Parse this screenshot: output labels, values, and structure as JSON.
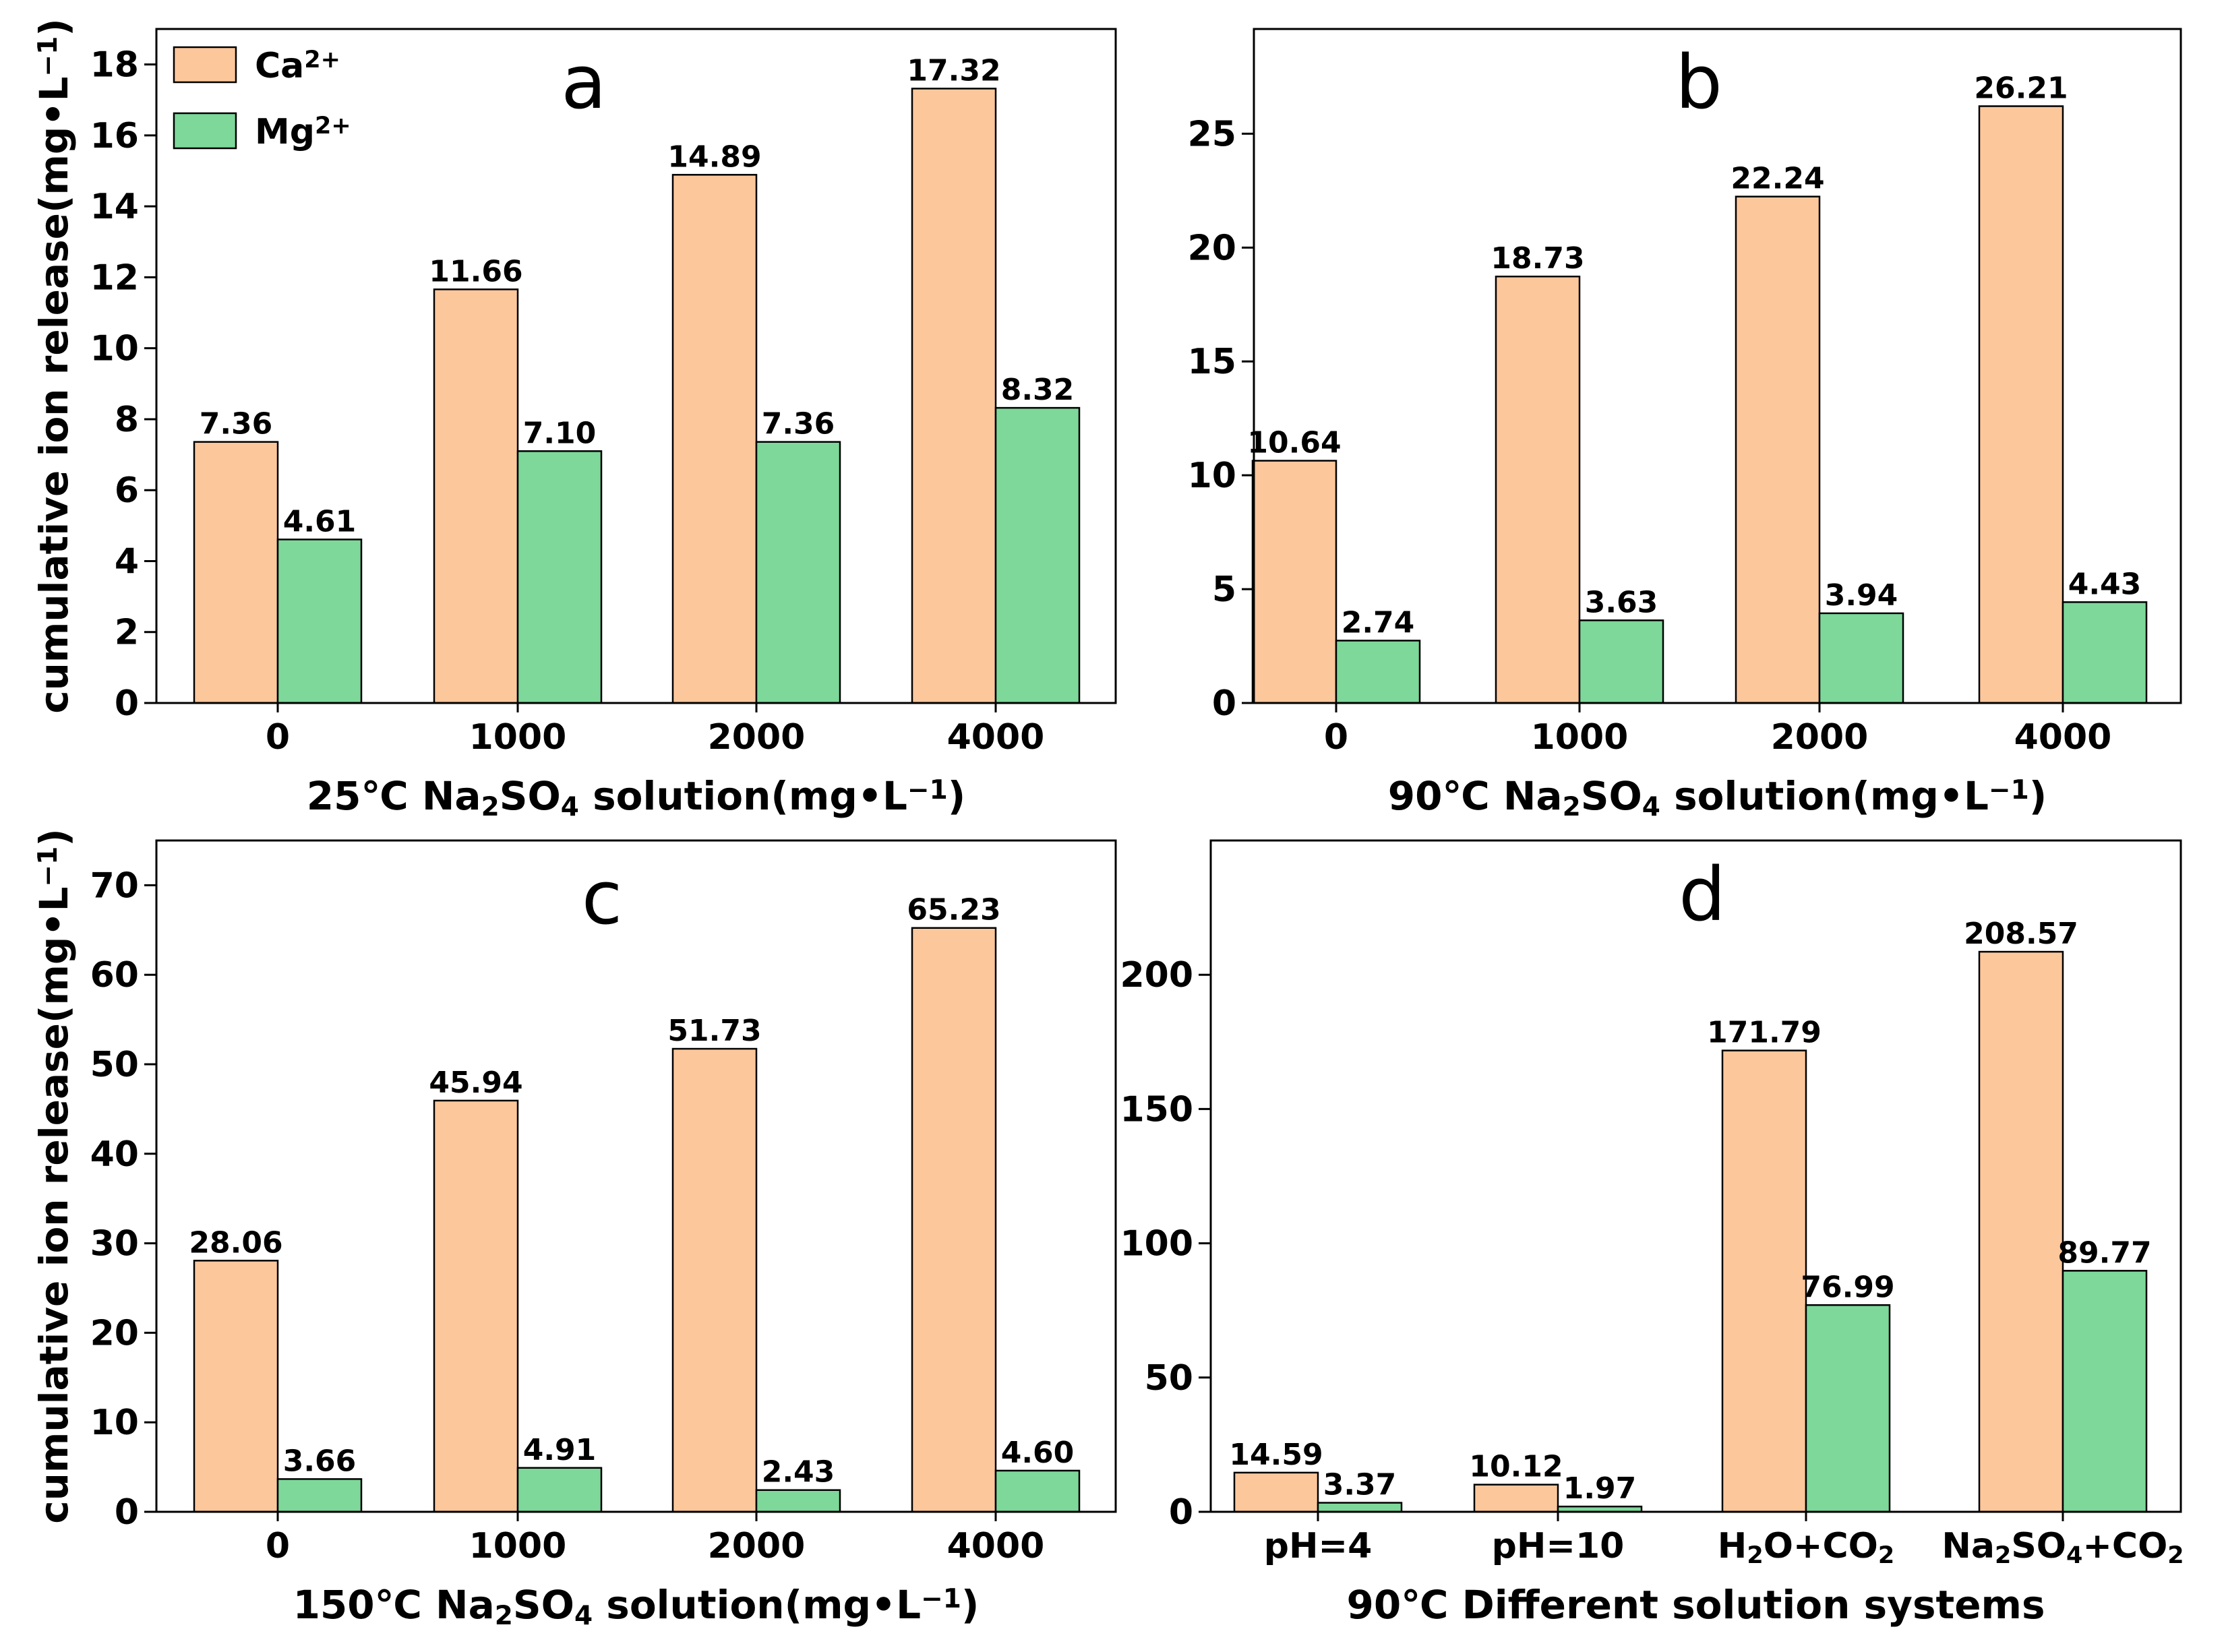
{
  "colors": {
    "ca": "#FDC79C",
    "mg": "#7DD89A",
    "axis": "#000000"
  },
  "legend": [
    {
      "key": "ca",
      "text": "Ca",
      "sup": "2+"
    },
    {
      "key": "mg",
      "text": "Mg",
      "sup": "2+"
    }
  ],
  "ylabel_text": "cumulative ion release(mg•L",
  "ylabel_sup": "−1",
  "ylabel_close": ")",
  "chart_data": [
    {
      "type": "bar",
      "panel": "a",
      "categories": [
        "0",
        "1000",
        "2000",
        "4000"
      ],
      "series": [
        {
          "name": "Ca2+",
          "values": [
            7.36,
            11.66,
            14.89,
            17.32
          ]
        },
        {
          "name": "Mg2+",
          "values": [
            4.61,
            7.1,
            7.36,
            8.32
          ]
        }
      ],
      "value_labels": [
        [
          "7.36",
          "11.66",
          "14.89",
          "17.32"
        ],
        [
          "4.61",
          "7.10",
          "7.36",
          "8.32"
        ]
      ],
      "ylim": [
        0,
        19
      ],
      "yticks": [
        0,
        2,
        4,
        6,
        8,
        10,
        12,
        14,
        16,
        18
      ],
      "xlabel": [
        "25℃ Na",
        "2",
        "SO",
        "4",
        " solution(mg•L",
        "−1",
        ")"
      ],
      "ylabel": "cumulative ion release(mg•L−1)"
    },
    {
      "type": "bar",
      "panel": "b",
      "categories": [
        "0",
        "1000",
        "2000",
        "4000"
      ],
      "series": [
        {
          "name": "Ca2+",
          "values": [
            10.64,
            18.73,
            22.24,
            26.21
          ]
        },
        {
          "name": "Mg2+",
          "values": [
            2.74,
            3.63,
            3.94,
            4.43
          ]
        }
      ],
      "value_labels": [
        [
          "10.64",
          "18.73",
          "22.24",
          "26.21"
        ],
        [
          "2.74",
          "3.63",
          "3.94",
          "4.43"
        ]
      ],
      "ylim": [
        0,
        29.6
      ],
      "yticks": [
        0,
        5,
        10,
        15,
        20,
        25
      ],
      "xlabel": [
        "90℃ Na",
        "2",
        "SO",
        "4",
        " solution(mg•L",
        "−1",
        ")"
      ],
      "ylabel": ""
    },
    {
      "type": "bar",
      "panel": "c",
      "categories": [
        "0",
        "1000",
        "2000",
        "4000"
      ],
      "series": [
        {
          "name": "Ca2+",
          "values": [
            28.06,
            45.94,
            51.73,
            65.23
          ]
        },
        {
          "name": "Mg2+",
          "values": [
            3.66,
            4.91,
            2.43,
            4.6
          ]
        }
      ],
      "value_labels": [
        [
          "28.06",
          "45.94",
          "51.73",
          "65.23"
        ],
        [
          "3.66",
          "4.91",
          "2.43",
          "4.60"
        ]
      ],
      "ylim": [
        0,
        75
      ],
      "yticks": [
        0,
        10,
        20,
        30,
        40,
        50,
        60,
        70
      ],
      "xlabel": [
        "150℃ Na",
        "2",
        "SO",
        "4",
        " solution(mg•L",
        "−1",
        ")"
      ],
      "ylabel": "cumulative ion release(mg•L−1)"
    },
    {
      "type": "bar",
      "panel": "d",
      "categories": [
        [
          "pH=4"
        ],
        [
          "pH=10"
        ],
        [
          "H",
          "2",
          "O+CO",
          "2"
        ],
        [
          "Na",
          "2",
          "SO",
          "4",
          "+CO",
          "2"
        ]
      ],
      "series": [
        {
          "name": "Ca2+",
          "values": [
            14.59,
            10.12,
            171.79,
            208.57
          ]
        },
        {
          "name": "Mg2+",
          "values": [
            3.37,
            1.97,
            76.99,
            89.77
          ]
        }
      ],
      "value_labels": [
        [
          "14.59",
          "10.12",
          "171.79",
          "208.57"
        ],
        [
          "3.37",
          "1.97",
          "76.99",
          "89.77"
        ]
      ],
      "ylim": [
        0,
        250
      ],
      "yticks": [
        0,
        50,
        100,
        150,
        200
      ],
      "xlabel": [
        "90℃ Different solution systems"
      ],
      "ylabel": ""
    }
  ]
}
